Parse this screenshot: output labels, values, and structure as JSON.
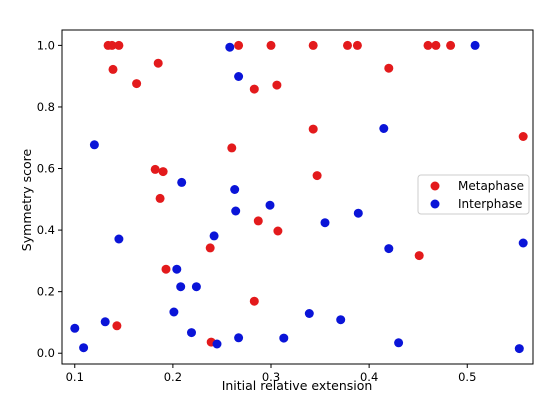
{
  "chart_data": {
    "type": "scatter",
    "title": "",
    "xlabel": "Initial relative extension",
    "ylabel": "Symmetry score",
    "xlim": [
      0.087,
      0.567
    ],
    "ylim": [
      -0.035,
      1.05
    ],
    "xticks": [
      0.1,
      0.2,
      0.3,
      0.4,
      0.5
    ],
    "xtick_labels": [
      "0.1",
      "0.2",
      "0.3",
      "0.4",
      "0.5"
    ],
    "yticks": [
      0.0,
      0.2,
      0.4,
      0.6,
      0.8,
      1.0
    ],
    "ytick_labels": [
      "0.0",
      "0.2",
      "0.4",
      "0.6",
      "0.8",
      "1.0"
    ],
    "grid": false,
    "legend_position": "center-right",
    "series": [
      {
        "name": "Metaphase",
        "color": "#e31a1c",
        "points": [
          {
            "x": 0.134,
            "y": 1.0
          },
          {
            "x": 0.138,
            "y": 1.0
          },
          {
            "x": 0.145,
            "y": 1.0
          },
          {
            "x": 0.139,
            "y": 0.922
          },
          {
            "x": 0.185,
            "y": 0.942
          },
          {
            "x": 0.163,
            "y": 0.876
          },
          {
            "x": 0.267,
            "y": 1.0
          },
          {
            "x": 0.3,
            "y": 1.0
          },
          {
            "x": 0.343,
            "y": 1.0
          },
          {
            "x": 0.378,
            "y": 1.0
          },
          {
            "x": 0.388,
            "y": 1.0
          },
          {
            "x": 0.46,
            "y": 1.0
          },
          {
            "x": 0.468,
            "y": 1.0
          },
          {
            "x": 0.483,
            "y": 1.0
          },
          {
            "x": 0.42,
            "y": 0.926
          },
          {
            "x": 0.306,
            "y": 0.871
          },
          {
            "x": 0.283,
            "y": 0.858
          },
          {
            "x": 0.343,
            "y": 0.728
          },
          {
            "x": 0.557,
            "y": 0.704
          },
          {
            "x": 0.26,
            "y": 0.667
          },
          {
            "x": 0.182,
            "y": 0.597
          },
          {
            "x": 0.19,
            "y": 0.59
          },
          {
            "x": 0.347,
            "y": 0.577
          },
          {
            "x": 0.187,
            "y": 0.503
          },
          {
            "x": 0.287,
            "y": 0.43
          },
          {
            "x": 0.307,
            "y": 0.397
          },
          {
            "x": 0.238,
            "y": 0.342
          },
          {
            "x": 0.451,
            "y": 0.317
          },
          {
            "x": 0.193,
            "y": 0.273
          },
          {
            "x": 0.283,
            "y": 0.169
          },
          {
            "x": 0.143,
            "y": 0.089
          },
          {
            "x": 0.239,
            "y": 0.036
          }
        ]
      },
      {
        "name": "Interphase",
        "color": "#0a14d8",
        "points": [
          {
            "x": 0.258,
            "y": 0.994
          },
          {
            "x": 0.508,
            "y": 1.0
          },
          {
            "x": 0.267,
            "y": 0.899
          },
          {
            "x": 0.415,
            "y": 0.73
          },
          {
            "x": 0.12,
            "y": 0.677
          },
          {
            "x": 0.209,
            "y": 0.555
          },
          {
            "x": 0.263,
            "y": 0.532
          },
          {
            "x": 0.299,
            "y": 0.481
          },
          {
            "x": 0.264,
            "y": 0.462
          },
          {
            "x": 0.389,
            "y": 0.455
          },
          {
            "x": 0.355,
            "y": 0.424
          },
          {
            "x": 0.242,
            "y": 0.381
          },
          {
            "x": 0.145,
            "y": 0.371
          },
          {
            "x": 0.42,
            "y": 0.34
          },
          {
            "x": 0.557,
            "y": 0.358
          },
          {
            "x": 0.204,
            "y": 0.273
          },
          {
            "x": 0.208,
            "y": 0.216
          },
          {
            "x": 0.224,
            "y": 0.216
          },
          {
            "x": 0.201,
            "y": 0.134
          },
          {
            "x": 0.339,
            "y": 0.129
          },
          {
            "x": 0.371,
            "y": 0.109
          },
          {
            "x": 0.131,
            "y": 0.102
          },
          {
            "x": 0.1,
            "y": 0.081
          },
          {
            "x": 0.219,
            "y": 0.067
          },
          {
            "x": 0.267,
            "y": 0.05
          },
          {
            "x": 0.313,
            "y": 0.049
          },
          {
            "x": 0.43,
            "y": 0.034
          },
          {
            "x": 0.245,
            "y": 0.03
          },
          {
            "x": 0.109,
            "y": 0.018
          },
          {
            "x": 0.553,
            "y": 0.015
          }
        ]
      }
    ]
  }
}
